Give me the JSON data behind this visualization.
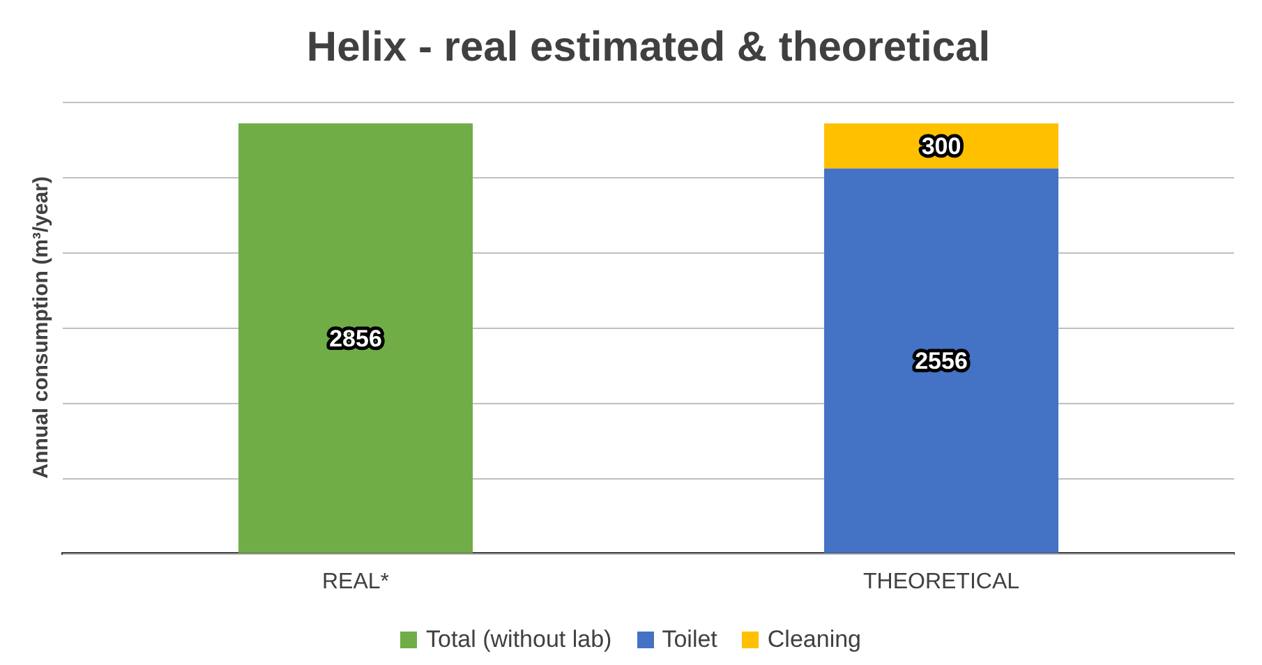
{
  "chart_data": {
    "type": "bar",
    "title": "Helix - real estimated & theoretical",
    "ylabel": "Annual consumption (m³/year)",
    "categories": [
      "REAL*",
      "THEORETICAL"
    ],
    "stacked": true,
    "series": [
      {
        "name": "Total (without lab)",
        "color": "#70ad47",
        "values": [
          2856,
          null
        ]
      },
      {
        "name": "Toilet",
        "color": "#4472c4",
        "values": [
          null,
          2556
        ]
      },
      {
        "name": "Cleaning",
        "color": "#ffc000",
        "values": [
          null,
          300
        ]
      }
    ],
    "tick_labels": "x",
    "grid": "y",
    "legend": "bottom",
    "data_labels": true
  }
}
